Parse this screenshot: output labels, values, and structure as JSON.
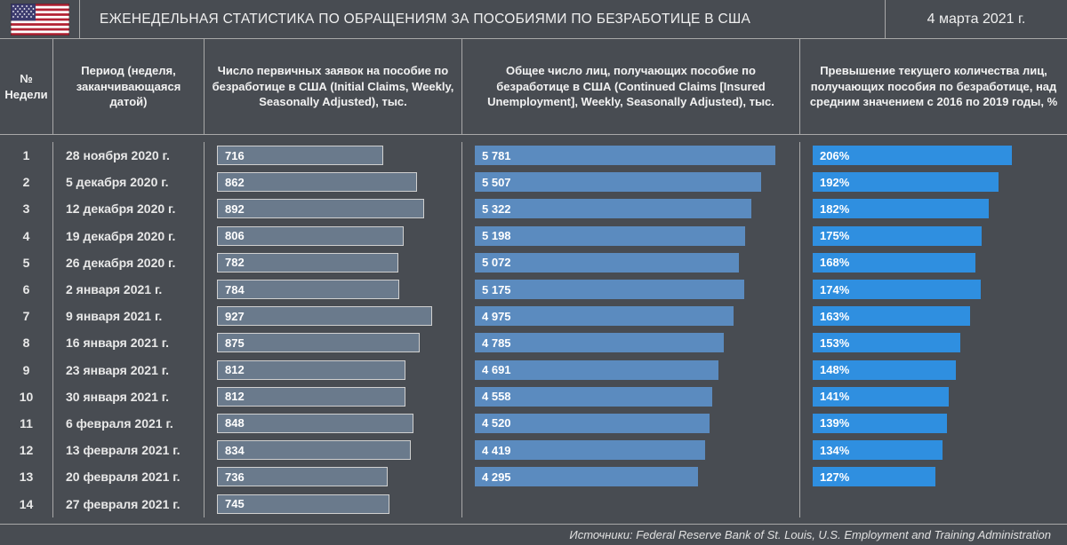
{
  "title": "ЕЖЕНЕДЕЛЬНАЯ СТАТИСТИКА ПО ОБРАЩЕНИЯМ ЗА ПОСОБИЯМИ ПО БЕЗРАБОТИЦЕ В США",
  "date": "4 марта 2021 г.",
  "footer": "Источники: Federal Reserve Bank of St. Louis, U.S. Employment and Training Administration",
  "columns": {
    "c0": "№ Недели",
    "c1": "Период  (неделя, заканчивающаяся датой)",
    "c2": "Число первичных заявок на пособие по безработице в США\n(Initial Claims, Weekly, Seasonally Adjusted), тыс.",
    "c3": "Общее число лиц, получающих пособие по безработице в США\n(Continued Claims [Insured Unemployment], Weekly, Seasonally Adjusted), тыс.",
    "c4": "Превышение текущего количества лиц, получающих пособия по безработице, над средним значением\nс 2016 по 2019 годы, %"
  },
  "bars": {
    "initial": {
      "fill": "#6a7a8c",
      "border": "#d0d0d0",
      "text_color": "#ffffff",
      "max": 1000
    },
    "continued": {
      "fill": "#5b8bbf",
      "text_color": "#ffffff",
      "max": 6000
    },
    "excess": {
      "fill": "#2f8fe0",
      "text_color": "#ffffff",
      "max": 250
    }
  },
  "rows": [
    {
      "n": "1",
      "period": "28 ноября 2020 г.",
      "initial": 716,
      "initial_label": "716",
      "continued": 5781,
      "continued_label": "5 781",
      "excess": 206,
      "excess_label": "206%"
    },
    {
      "n": "2",
      "period": "5 декабря 2020 г.",
      "initial": 862,
      "initial_label": "862",
      "continued": 5507,
      "continued_label": "5 507",
      "excess": 192,
      "excess_label": "192%"
    },
    {
      "n": "3",
      "period": "12 декабря 2020 г.",
      "initial": 892,
      "initial_label": "892",
      "continued": 5322,
      "continued_label": "5 322",
      "excess": 182,
      "excess_label": "182%"
    },
    {
      "n": "4",
      "period": "19 декабря 2020 г.",
      "initial": 806,
      "initial_label": "806",
      "continued": 5198,
      "continued_label": "5 198",
      "excess": 175,
      "excess_label": "175%"
    },
    {
      "n": "5",
      "period": "26 декабря 2020 г.",
      "initial": 782,
      "initial_label": "782",
      "continued": 5072,
      "continued_label": "5 072",
      "excess": 168,
      "excess_label": "168%"
    },
    {
      "n": "6",
      "period": "2 января 2021 г.",
      "initial": 784,
      "initial_label": "784",
      "continued": 5175,
      "continued_label": "5 175",
      "excess": 174,
      "excess_label": "174%"
    },
    {
      "n": "7",
      "period": "9 января 2021 г.",
      "initial": 927,
      "initial_label": "927",
      "continued": 4975,
      "continued_label": "4 975",
      "excess": 163,
      "excess_label": "163%"
    },
    {
      "n": "8",
      "period": "16 января 2021 г.",
      "initial": 875,
      "initial_label": "875",
      "continued": 4785,
      "continued_label": "4 785",
      "excess": 153,
      "excess_label": "153%"
    },
    {
      "n": "9",
      "period": "23 января 2021 г.",
      "initial": 812,
      "initial_label": "812",
      "continued": 4691,
      "continued_label": "4 691",
      "excess": 148,
      "excess_label": "148%"
    },
    {
      "n": "10",
      "period": "30 января 2021 г.",
      "initial": 812,
      "initial_label": "812",
      "continued": 4558,
      "continued_label": "4 558",
      "excess": 141,
      "excess_label": "141%"
    },
    {
      "n": "11",
      "period": "6 февраля 2021 г.",
      "initial": 848,
      "initial_label": "848",
      "continued": 4520,
      "continued_label": "4 520",
      "excess": 139,
      "excess_label": "139%"
    },
    {
      "n": "12",
      "period": "13 февраля 2021 г.",
      "initial": 834,
      "initial_label": "834",
      "continued": 4419,
      "continued_label": "4 419",
      "excess": 134,
      "excess_label": "134%"
    },
    {
      "n": "13",
      "period": "20 февраля 2021 г.",
      "initial": 736,
      "initial_label": "736",
      "continued": 4295,
      "continued_label": "4 295",
      "excess": 127,
      "excess_label": "127%"
    },
    {
      "n": "14",
      "period": "27 февраля 2021 г.",
      "initial": 745,
      "initial_label": "745",
      "continued": null,
      "continued_label": "",
      "excess": null,
      "excess_label": ""
    }
  ]
}
